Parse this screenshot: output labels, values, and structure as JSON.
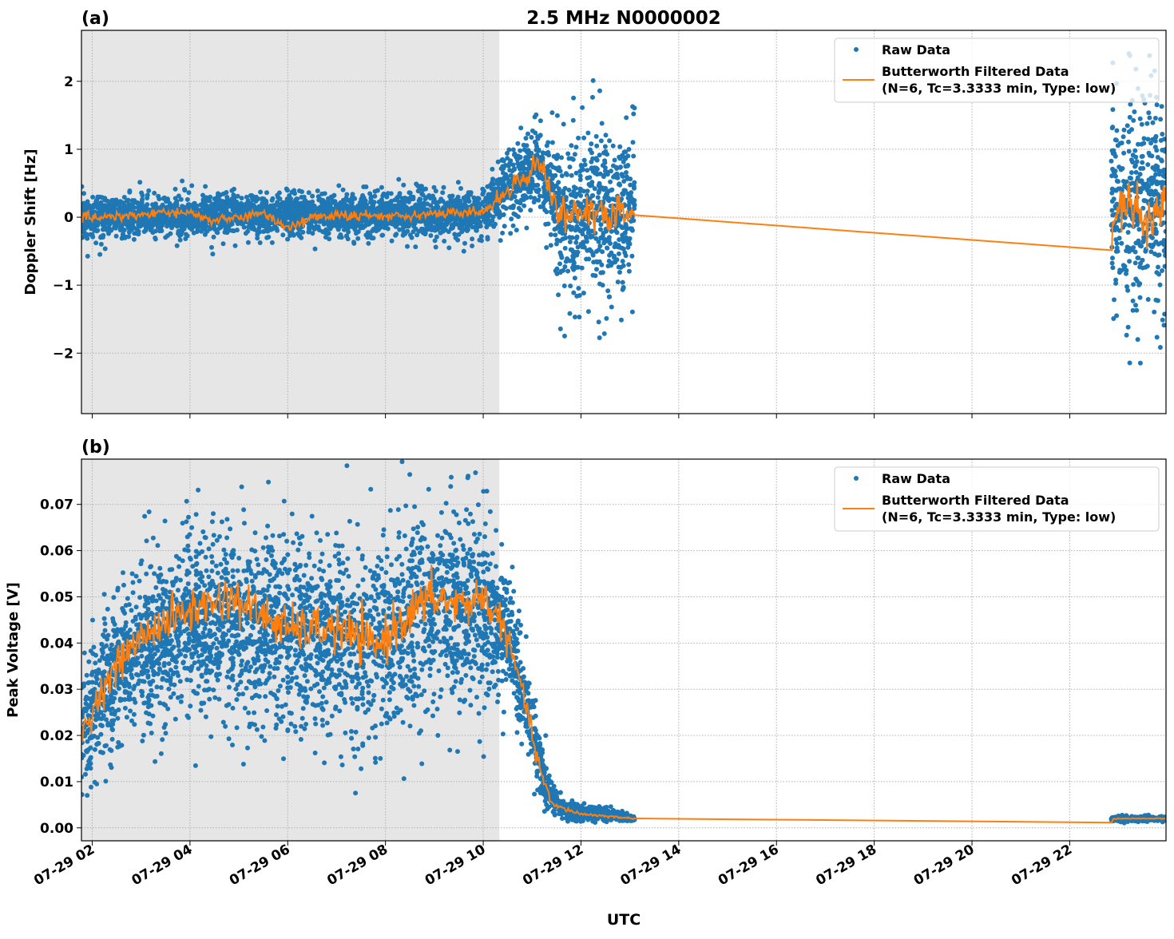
{
  "chart_data": [
    {
      "type": "scatter",
      "panel_label": "(a)",
      "title": "2.5 MHz N0000002",
      "xlabel": "",
      "ylabel": "Doppler Shift [Hz]",
      "xlim_hours": [
        1.78,
        23.97
      ],
      "ylim": [
        -2.89,
        2.75
      ],
      "yticks": [
        -2,
        -1,
        0,
        1,
        2
      ],
      "ytick_labels": [
        "−2",
        "−1",
        "0",
        "1",
        "2"
      ],
      "grid": true,
      "shaded_region_hours": [
        1.78,
        10.33
      ],
      "legend": {
        "placement": "top-right",
        "entries": [
          "Raw Data",
          "Butterworth Filtered Data",
          "(N=6, Tc=3.3333 min, Type: low)"
        ]
      },
      "data_segments_hours": [
        [
          1.78,
          13.1
        ],
        [
          22.85,
          23.97
        ]
      ],
      "series": [
        {
          "name": "Butterworth Filtered Data",
          "color": "#ff7f0e",
          "points": [
            [
              1.78,
              0.0
            ],
            [
              2.5,
              0.02
            ],
            [
              3,
              0.03
            ],
            [
              3.5,
              0.08
            ],
            [
              4,
              0.05
            ],
            [
              4.5,
              -0.05
            ],
            [
              5,
              0.0
            ],
            [
              5.5,
              0.05
            ],
            [
              6,
              -0.15
            ],
            [
              6.5,
              0.0
            ],
            [
              7,
              0.02
            ],
            [
              8,
              0.02
            ],
            [
              9,
              0.05
            ],
            [
              10,
              0.08
            ],
            [
              10.3,
              0.25
            ],
            [
              10.6,
              0.5
            ],
            [
              10.9,
              0.6
            ],
            [
              11.1,
              0.82
            ],
            [
              11.3,
              0.6
            ],
            [
              11.5,
              0.1
            ],
            [
              12,
              0.05
            ],
            [
              12.5,
              0.0
            ],
            [
              13.1,
              0.06
            ],
            [
              22.85,
              -0.5
            ],
            [
              22.9,
              0.1
            ],
            [
              23.3,
              0.2
            ],
            [
              23.6,
              -0.1
            ],
            [
              23.97,
              0.2
            ]
          ]
        },
        {
          "name": "Raw Data",
          "color": "#1f77b4",
          "envelope_center_spread": [
            [
              1.78,
              0,
              0.3
            ],
            [
              10,
              0.05,
              0.3
            ],
            [
              10.3,
              0.3,
              0.5
            ],
            [
              11.1,
              0.8,
              0.6
            ],
            [
              11.4,
              0.3,
              0.8
            ],
            [
              11.6,
              0.0,
              1.2
            ],
            [
              13.1,
              0.1,
              1.3
            ],
            [
              22.85,
              0.2,
              1.6
            ],
            [
              23.97,
              0.2,
              1.5
            ]
          ]
        }
      ]
    },
    {
      "type": "scatter",
      "panel_label": "(b)",
      "title": "",
      "xlabel": "UTC",
      "ylabel": "Peak Voltage [V]",
      "xlim_hours": [
        1.78,
        23.97
      ],
      "ylim": [
        -0.0028,
        0.0798
      ],
      "yticks": [
        0,
        0.01,
        0.02,
        0.03,
        0.04,
        0.05,
        0.06,
        0.07
      ],
      "ytick_labels": [
        "0.00",
        "0.01",
        "0.02",
        "0.03",
        "0.04",
        "0.05",
        "0.06",
        "0.07"
      ],
      "xticks_hours": [
        2,
        4,
        6,
        8,
        10,
        12,
        14,
        16,
        18,
        20,
        22
      ],
      "xtick_labels": [
        "07-29 02",
        "07-29 04",
        "07-29 06",
        "07-29 08",
        "07-29 10",
        "07-29 12",
        "07-29 14",
        "07-29 16",
        "07-29 18",
        "07-29 20",
        "07-29 22"
      ],
      "grid": true,
      "shaded_region_hours": [
        1.78,
        10.33
      ],
      "legend": {
        "placement": "top-right",
        "entries": [
          "Raw Data",
          "Butterworth Filtered Data",
          "(N=6, Tc=3.3333 min, Type: low)"
        ]
      },
      "data_segments_hours": [
        [
          1.78,
          13.1
        ],
        [
          22.85,
          23.97
        ]
      ],
      "series": [
        {
          "name": "Butterworth Filtered Data",
          "color": "#ff7f0e",
          "points": [
            [
              1.78,
              0.02
            ],
            [
              2.2,
              0.03
            ],
            [
              2.7,
              0.038
            ],
            [
              3.2,
              0.043
            ],
            [
              4,
              0.047
            ],
            [
              4.8,
              0.05
            ],
            [
              5.5,
              0.046
            ],
            [
              6,
              0.043
            ],
            [
              7,
              0.043
            ],
            [
              7.8,
              0.039
            ],
            [
              8.3,
              0.045
            ],
            [
              9,
              0.05
            ],
            [
              9.5,
              0.048
            ],
            [
              10,
              0.05
            ],
            [
              10.4,
              0.044
            ],
            [
              10.8,
              0.03
            ],
            [
              11.1,
              0.015
            ],
            [
              11.4,
              0.005
            ],
            [
              12,
              0.003
            ],
            [
              13.1,
              0.002
            ],
            [
              22.85,
              0.001
            ],
            [
              22.9,
              0.002
            ],
            [
              23.97,
              0.002
            ]
          ]
        },
        {
          "name": "Raw Data",
          "color": "#1f77b4",
          "envelope_center_spread": [
            [
              1.78,
              0.02,
              0.012
            ],
            [
              2.5,
              0.036,
              0.016
            ],
            [
              4,
              0.045,
              0.02
            ],
            [
              6,
              0.043,
              0.02
            ],
            [
              8,
              0.04,
              0.022
            ],
            [
              9,
              0.048,
              0.022
            ],
            [
              10,
              0.048,
              0.02
            ],
            [
              10.5,
              0.042,
              0.012
            ],
            [
              10.9,
              0.025,
              0.01
            ],
            [
              11.3,
              0.008,
              0.005
            ],
            [
              11.6,
              0.004,
              0.002
            ],
            [
              13.1,
              0.002,
              0.0006
            ],
            [
              22.85,
              0.002,
              0.0005
            ],
            [
              23.97,
              0.002,
              0.0005
            ]
          ]
        }
      ]
    }
  ]
}
